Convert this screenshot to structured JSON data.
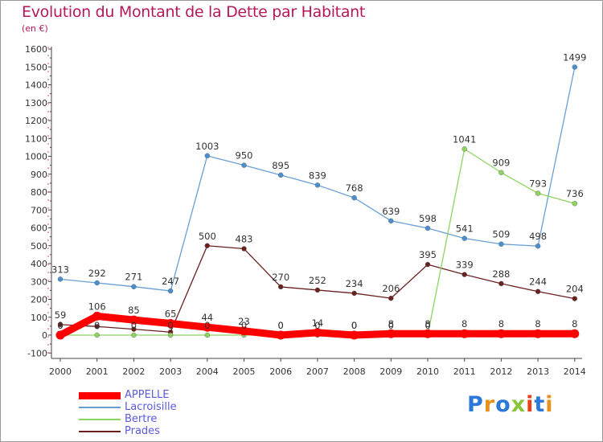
{
  "title": "Evolution du Montant de la Dette par Habitant",
  "subtitle": "(en €)",
  "logo": [
    "P",
    "r",
    "o",
    "x",
    "i",
    "t",
    "i"
  ],
  "logo_colors": [
    "#2b78d8",
    "#e8901a",
    "#2b78d8",
    "#8bc43a",
    "#e83e1a",
    "#2b78d8",
    "#e8901a"
  ],
  "chart_data": {
    "type": "line",
    "x": [
      2000,
      2001,
      2002,
      2003,
      2004,
      2005,
      2006,
      2007,
      2008,
      2009,
      2010,
      2011,
      2012,
      2013,
      2014
    ],
    "ylim": [
      -100,
      1600
    ],
    "yticks": [
      -100,
      0,
      100,
      200,
      300,
      400,
      500,
      600,
      700,
      800,
      900,
      1000,
      1100,
      1200,
      1300,
      1400,
      1500,
      1600
    ],
    "grid": false,
    "legend": "bottom-left",
    "series": [
      {
        "name": "Lacroisille",
        "color": "#6a9fd4",
        "marker": "#4a90d0",
        "width": 1.3,
        "values": [
          313,
          292,
          271,
          247,
          1003,
          950,
          895,
          839,
          768,
          639,
          598,
          541,
          509,
          498,
          1499
        ],
        "labels": [
          "313",
          "292",
          "271",
          "247",
          "1003",
          "950",
          "895",
          "839",
          "768",
          "639",
          "598",
          "541",
          "509",
          "498",
          "1499"
        ]
      },
      {
        "name": "Prades",
        "color": "#6b2020",
        "marker": "#6b2020",
        "width": 1.3,
        "values": [
          59,
          48,
          33,
          17,
          500,
          483,
          270,
          252,
          234,
          206,
          395,
          339,
          288,
          244,
          204
        ],
        "labels": [
          "59",
          "",
          "",
          "",
          "500",
          "483",
          "270",
          "252",
          "234",
          "206",
          "395",
          "339",
          "288",
          "244",
          "204"
        ]
      },
      {
        "name": "Bertre",
        "color": "#8fd460",
        "marker": "#8fd460",
        "width": 1.3,
        "values": [
          0,
          0,
          0,
          0,
          0,
          0,
          0,
          0,
          0,
          0,
          0,
          1041,
          909,
          793,
          736
        ],
        "labels": [
          "0",
          "0",
          "0",
          "0",
          "0",
          "0",
          "0",
          "0",
          "0",
          "0",
          "0",
          "1041",
          "909",
          "793",
          "736"
        ]
      },
      {
        "name": "APPELLE",
        "color": "#ff0000",
        "marker": "#ff0000",
        "width": 9,
        "values": [
          0,
          106,
          85,
          65,
          44,
          23,
          0,
          14,
          0,
          8,
          8,
          8,
          8,
          8,
          8
        ],
        "labels": [
          "0",
          "106",
          "85",
          "65",
          "44",
          "23",
          "0",
          "14",
          "0",
          "8",
          "8",
          "8",
          "8",
          "8",
          "8"
        ]
      }
    ]
  }
}
